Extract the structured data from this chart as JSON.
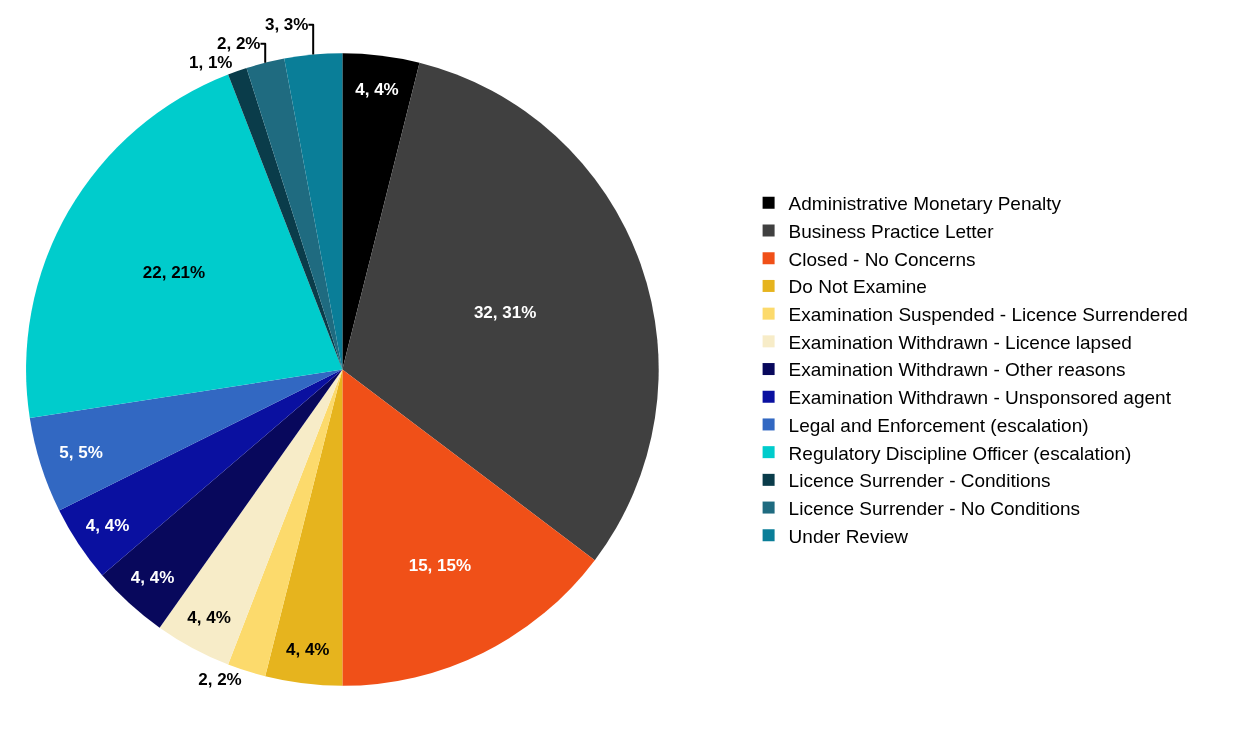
{
  "chart_data": {
    "type": "pie",
    "categories": [
      "Administrative Monetary Penalty",
      "Business Practice Letter",
      "Closed - No Concerns",
      "Do Not Examine",
      "Examination Suspended - Licence Surrendered",
      "Examination Withdrawn - Licence lapsed",
      "Examination Withdrawn - Other reasons",
      "Examination Withdrawn - Unsponsored agent",
      "Legal and Enforcement (escalation)",
      "Regulatory Discipline Officer (escalation)",
      "Licence Surrender - Conditions",
      "Licence Surrender - No Conditions",
      "Under Review"
    ],
    "values": [
      4,
      32,
      15,
      4,
      2,
      4,
      4,
      4,
      5,
      22,
      1,
      2,
      3
    ],
    "value_labels": [
      "4, 4%",
      "32, 31%",
      "15, 15%",
      "4, 4%",
      "2, 2%",
      "4, 4%",
      "4, 4%",
      "4, 4%",
      "5, 5%",
      "22, 21%",
      "1, 1%",
      "2, 2%",
      "3, 3%"
    ],
    "colors": [
      "#000000",
      "#404040",
      "#f05018",
      "#e6b41e",
      "#fcda6c",
      "#f7ecc8",
      "#08085c",
      "#0a10a0",
      "#3268c2",
      "#00cccc",
      "#0a3c4a",
      "#1f6b80",
      "#0a7e98"
    ],
    "legend": "right"
  }
}
